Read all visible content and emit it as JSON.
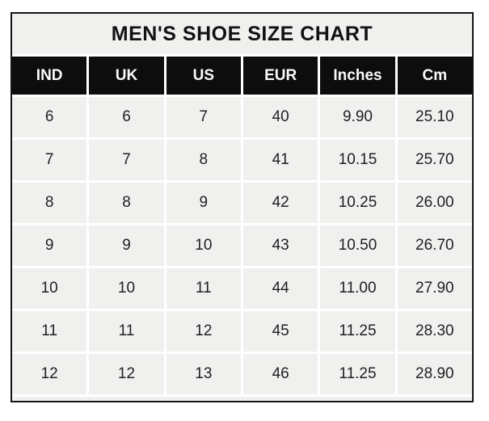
{
  "chart_data": {
    "type": "table",
    "title": "MEN'S SHOE SIZE CHART",
    "columns": [
      "IND",
      "UK",
      "US",
      "EUR",
      "Inches",
      "Cm"
    ],
    "rows": [
      [
        "6",
        "6",
        "7",
        "40",
        "9.90",
        "25.10"
      ],
      [
        "7",
        "7",
        "8",
        "41",
        "10.15",
        "25.70"
      ],
      [
        "8",
        "8",
        "9",
        "42",
        "10.25",
        "26.00"
      ],
      [
        "9",
        "9",
        "10",
        "43",
        "10.50",
        "26.70"
      ],
      [
        "10",
        "10",
        "11",
        "44",
        "11.00",
        "27.90"
      ],
      [
        "11",
        "11",
        "12",
        "45",
        "11.25",
        "28.30"
      ],
      [
        "12",
        "12",
        "13",
        "46",
        "11.25",
        "28.90"
      ]
    ]
  },
  "colors": {
    "page_bg": "#ffffff",
    "title_text": "#121212",
    "header_bg": "#0d0d0d",
    "header_text": "#fafaf8",
    "cell_bg": "#f0f0ee",
    "cell_text": "#212121",
    "border": "#141414",
    "gap": "#ffffff"
  }
}
